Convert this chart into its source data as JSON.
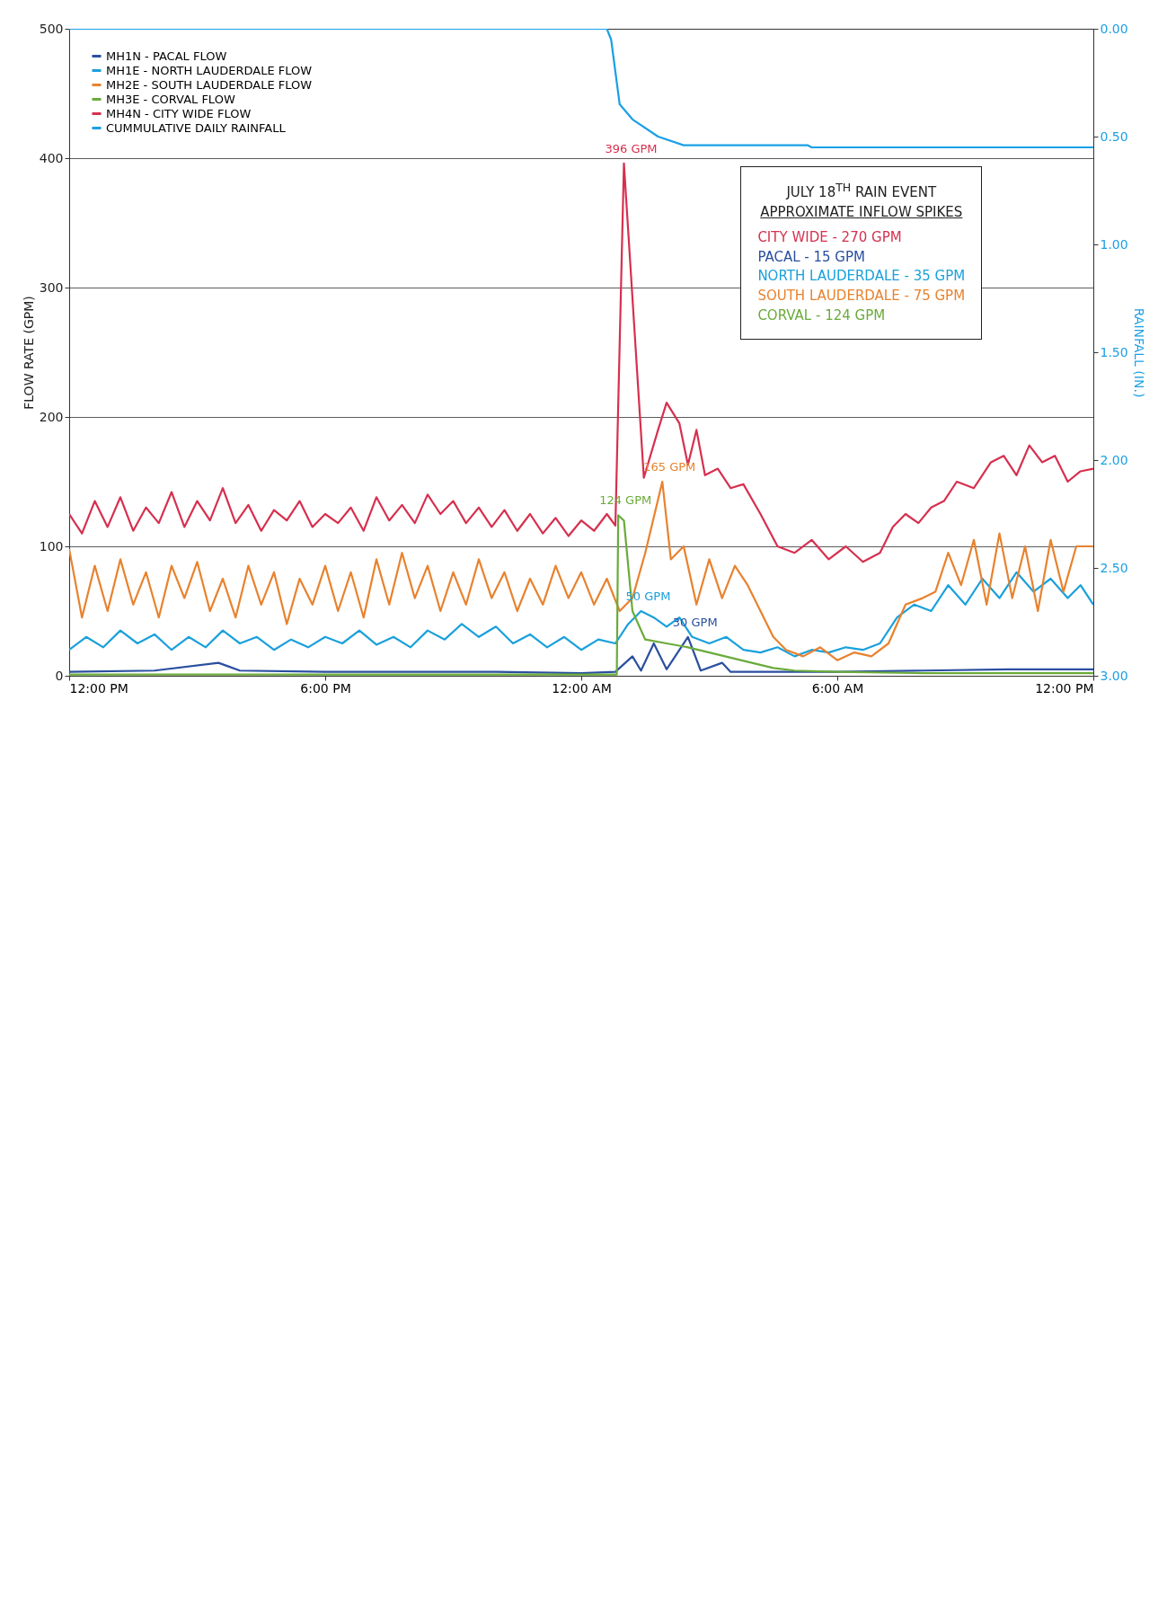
{
  "chart_data": {
    "type": "line",
    "xlabel": null,
    "ylabel": "FLOW RATE (GPM)",
    "y2label": "RAINFALL (IN.)",
    "xlim": [
      "--07-17T12:00",
      "--07-18T12:00"
    ],
    "xticks": [
      {
        "value": "--07-17T12:00",
        "label": "12:00 PM"
      },
      {
        "value": "--07-17T18:00",
        "label": "6:00 PM"
      },
      {
        "value": "--07-18T00:00",
        "label": "12:00 AM"
      },
      {
        "value": "--07-18T06:00",
        "label": "6:00 AM"
      },
      {
        "value": "--07-18T12:00",
        "label": "12:00 PM"
      }
    ],
    "ylim": [
      0,
      500
    ],
    "yticks": [
      0,
      100,
      200,
      300,
      400,
      500
    ],
    "y2lim": [
      3,
      0
    ],
    "y2ticks": [
      {
        "value": 0,
        "label": "0.00"
      },
      {
        "value": 0.5,
        "label": "0.50"
      },
      {
        "value": 1,
        "label": "1.00"
      },
      {
        "value": 1.5,
        "label": "1.50"
      },
      {
        "value": 2,
        "label": "2.00"
      },
      {
        "value": 2.5,
        "label": "2.50"
      },
      {
        "value": 3,
        "label": "3.00"
      }
    ],
    "grid": "y",
    "legend": "top left",
    "series": [
      {
        "name": "MH1N - PACAL FLOW",
        "color": "#2a4fa0",
        "x": [
          "--07-17T12:00",
          "--07-17T14:00",
          "--07-17T15:30",
          "--07-17T16:00",
          "--07-17T18:00",
          "--07-17T20:00",
          "--07-17T22:00",
          "--07-18T00:00",
          "--07-18T00:48",
          "--07-18T01:12",
          "--07-18T01:24",
          "--07-18T01:42",
          "--07-18T02:00",
          "--07-18T02:30",
          "--07-18T02:48",
          "--07-18T03:18",
          "--07-18T03:30",
          "--07-18T06:00",
          "--07-18T08:00",
          "--07-18T10:00",
          "--07-18T12:00"
        ],
        "values": [
          3,
          4,
          10,
          4,
          3,
          3,
          3,
          2,
          3,
          15,
          4,
          25,
          5,
          30,
          4,
          10,
          3,
          3,
          4,
          5,
          5
        ]
      },
      {
        "name": "MH1E - NORTH LAUDERDALE FLOW",
        "color": "#1aa0dc",
        "x": [
          "--07-17T12:00",
          "--07-17T12:24",
          "--07-17T12:48",
          "--07-17T13:12",
          "--07-17T13:36",
          "--07-17T14:00",
          "--07-17T14:24",
          "--07-17T14:48",
          "--07-17T15:12",
          "--07-17T15:36",
          "--07-17T16:00",
          "--07-17T16:24",
          "--07-17T16:48",
          "--07-17T17:12",
          "--07-17T17:36",
          "--07-17T18:00",
          "--07-17T18:24",
          "--07-17T18:48",
          "--07-17T19:12",
          "--07-17T19:36",
          "--07-17T20:00",
          "--07-17T20:24",
          "--07-17T20:48",
          "--07-17T21:12",
          "--07-17T21:36",
          "--07-17T22:00",
          "--07-17T22:24",
          "--07-17T22:48",
          "--07-17T23:12",
          "--07-17T23:36",
          "--07-18T00:00",
          "--07-18T00:24",
          "--07-18T00:48",
          "--07-18T01:06",
          "--07-18T01:24",
          "--07-18T01:42",
          "--07-18T02:00",
          "--07-18T02:18",
          "--07-18T02:36",
          "--07-18T03:00",
          "--07-18T03:24",
          "--07-18T03:48",
          "--07-18T04:12",
          "--07-18T04:36",
          "--07-18T05:00",
          "--07-18T05:24",
          "--07-18T05:48",
          "--07-18T06:12",
          "--07-18T06:36",
          "--07-18T07:00",
          "--07-18T07:24",
          "--07-18T07:48",
          "--07-18T08:12",
          "--07-18T08:36",
          "--07-18T09:00",
          "--07-18T09:24",
          "--07-18T09:48",
          "--07-18T10:12",
          "--07-18T10:36",
          "--07-18T11:00",
          "--07-18T11:24",
          "--07-18T11:42",
          "--07-18T12:00"
        ],
        "values": [
          20,
          30,
          22,
          35,
          25,
          32,
          20,
          30,
          22,
          35,
          25,
          30,
          20,
          28,
          22,
          30,
          25,
          35,
          24,
          30,
          22,
          35,
          28,
          40,
          30,
          38,
          25,
          32,
          22,
          30,
          20,
          28,
          25,
          40,
          50,
          45,
          38,
          45,
          30,
          25,
          30,
          20,
          18,
          22,
          15,
          20,
          18,
          22,
          20,
          25,
          45,
          55,
          50,
          70,
          55,
          75,
          60,
          80,
          65,
          75,
          60,
          70,
          55
        ]
      },
      {
        "name": "MH2E - SOUTH LAUDERDALE FLOW",
        "color": "#e8822e",
        "x": [
          "--07-17T12:00",
          "--07-17T12:18",
          "--07-17T12:36",
          "--07-17T12:54",
          "--07-17T13:12",
          "--07-17T13:30",
          "--07-17T13:48",
          "--07-17T14:06",
          "--07-17T14:24",
          "--07-17T14:42",
          "--07-17T15:00",
          "--07-17T15:18",
          "--07-17T15:36",
          "--07-17T15:54",
          "--07-17T16:12",
          "--07-17T16:30",
          "--07-17T16:48",
          "--07-17T17:06",
          "--07-17T17:24",
          "--07-17T17:42",
          "--07-17T18:00",
          "--07-17T18:18",
          "--07-17T18:36",
          "--07-17T18:54",
          "--07-17T19:12",
          "--07-17T19:30",
          "--07-17T19:48",
          "--07-17T20:06",
          "--07-17T20:24",
          "--07-17T20:42",
          "--07-17T21:00",
          "--07-17T21:18",
          "--07-17T21:36",
          "--07-17T21:54",
          "--07-17T22:12",
          "--07-17T22:30",
          "--07-17T22:48",
          "--07-17T23:06",
          "--07-17T23:24",
          "--07-17T23:42",
          "--07-18T00:00",
          "--07-18T00:18",
          "--07-18T00:36",
          "--07-18T00:54",
          "--07-18T01:12",
          "--07-18T01:30",
          "--07-18T01:54",
          "--07-18T02:06",
          "--07-18T02:24",
          "--07-18T02:42",
          "--07-18T03:00",
          "--07-18T03:18",
          "--07-18T03:36",
          "--07-18T03:54",
          "--07-18T04:12",
          "--07-18T04:30",
          "--07-18T04:48",
          "--07-18T05:12",
          "--07-18T05:36",
          "--07-18T06:00",
          "--07-18T06:24",
          "--07-18T06:48",
          "--07-18T07:12",
          "--07-18T07:36",
          "--07-18T08:00",
          "--07-18T08:18",
          "--07-18T08:36",
          "--07-18T08:54",
          "--07-18T09:12",
          "--07-18T09:30",
          "--07-18T09:48",
          "--07-18T10:06",
          "--07-18T10:24",
          "--07-18T10:42",
          "--07-18T11:00",
          "--07-18T11:18",
          "--07-18T11:36",
          "--07-18T12:00"
        ],
        "values": [
          98,
          45,
          85,
          50,
          90,
          55,
          80,
          45,
          85,
          60,
          88,
          50,
          75,
          45,
          85,
          55,
          80,
          40,
          75,
          55,
          85,
          50,
          80,
          45,
          90,
          55,
          95,
          60,
          85,
          50,
          80,
          55,
          90,
          60,
          80,
          50,
          75,
          55,
          85,
          60,
          80,
          55,
          75,
          50,
          60,
          95,
          150,
          90,
          100,
          55,
          90,
          60,
          85,
          70,
          50,
          30,
          20,
          15,
          22,
          12,
          18,
          15,
          25,
          55,
          60,
          65,
          95,
          70,
          105,
          55,
          110,
          60,
          100,
          50,
          105,
          65,
          100,
          100
        ]
      },
      {
        "name": "MH3E - CORVAL FLOW",
        "color": "#6aab3a",
        "x": [
          "--07-17T12:00",
          "--07-17T16:00",
          "--07-17T20:00",
          "--07-18T00:00",
          "--07-18T00:50",
          "--07-18T00:52",
          "--07-18T01:00",
          "--07-18T01:12",
          "--07-18T01:30",
          "--07-18T02:00",
          "--07-18T02:30",
          "--07-18T03:00",
          "--07-18T03:30",
          "--07-18T04:00",
          "--07-18T04:30",
          "--07-18T05:00",
          "--07-18T06:00",
          "--07-18T08:00",
          "--07-18T10:00",
          "--07-18T12:00"
        ],
        "values": [
          1,
          1,
          1,
          1,
          1,
          124,
          120,
          50,
          28,
          25,
          22,
          18,
          14,
          10,
          6,
          4,
          3,
          2,
          2,
          2
        ]
      },
      {
        "name": "MH4N - CITY WIDE FLOW",
        "color": "#d6304f",
        "x": [
          "--07-17T12:00",
          "--07-17T12:18",
          "--07-17T12:36",
          "--07-17T12:54",
          "--07-17T13:12",
          "--07-17T13:30",
          "--07-17T13:48",
          "--07-17T14:06",
          "--07-17T14:24",
          "--07-17T14:42",
          "--07-17T15:00",
          "--07-17T15:18",
          "--07-17T15:36",
          "--07-17T15:54",
          "--07-17T16:12",
          "--07-17T16:30",
          "--07-17T16:48",
          "--07-17T17:06",
          "--07-17T17:24",
          "--07-17T17:42",
          "--07-17T18:00",
          "--07-17T18:18",
          "--07-17T18:36",
          "--07-17T18:54",
          "--07-17T19:12",
          "--07-17T19:30",
          "--07-17T19:48",
          "--07-17T20:06",
          "--07-17T20:24",
          "--07-17T20:42",
          "--07-17T21:00",
          "--07-17T21:18",
          "--07-17T21:36",
          "--07-17T21:54",
          "--07-17T22:12",
          "--07-17T22:30",
          "--07-17T22:48",
          "--07-17T23:06",
          "--07-17T23:24",
          "--07-17T23:42",
          "--07-18T00:00",
          "--07-18T00:18",
          "--07-18T00:36",
          "--07-18T00:48",
          "--07-18T01:00",
          "--07-18T01:28",
          "--07-18T01:48",
          "--07-18T02:00",
          "--07-18T02:18",
          "--07-18T02:30",
          "--07-18T02:42",
          "--07-18T02:54",
          "--07-18T03:12",
          "--07-18T03:30",
          "--07-18T03:48",
          "--07-18T04:12",
          "--07-18T04:36",
          "--07-18T05:00",
          "--07-18T05:24",
          "--07-18T05:48",
          "--07-18T06:12",
          "--07-18T06:36",
          "--07-18T07:00",
          "--07-18T07:18",
          "--07-18T07:36",
          "--07-18T07:54",
          "--07-18T08:12",
          "--07-18T08:30",
          "--07-18T08:48",
          "--07-18T09:12",
          "--07-18T09:36",
          "--07-18T09:54",
          "--07-18T10:12",
          "--07-18T10:30",
          "--07-18T10:48",
          "--07-18T11:06",
          "--07-18T11:24",
          "--07-18T11:42",
          "--07-18T12:00"
        ],
        "values": [
          125,
          110,
          135,
          115,
          138,
          112,
          130,
          118,
          142,
          115,
          135,
          120,
          145,
          118,
          132,
          112,
          128,
          120,
          135,
          115,
          125,
          118,
          130,
          112,
          138,
          120,
          132,
          118,
          140,
          125,
          135,
          118,
          130,
          115,
          128,
          112,
          125,
          110,
          122,
          108,
          120,
          112,
          125,
          116,
          396,
          153,
          190,
          211,
          195,
          163,
          190,
          155,
          160,
          145,
          148,
          125,
          100,
          95,
          105,
          90,
          100,
          88,
          95,
          115,
          125,
          118,
          130,
          135,
          150,
          145,
          165,
          170,
          155,
          178,
          165,
          170,
          150,
          158,
          160
        ]
      },
      {
        "name": "CUMMULATIVE DAILY RAINFALL",
        "color": "#1aa0e6",
        "axis": "y2",
        "x": [
          "--07-17T12:00",
          "--07-18T00:36",
          "--07-18T00:42",
          "--07-18T00:54",
          "--07-18T01:12",
          "--07-18T01:48",
          "--07-18T02:24",
          "--07-18T05:18",
          "--07-18T05:24",
          "--07-18T12:00"
        ],
        "values": [
          0,
          0,
          0.05,
          0.35,
          0.42,
          0.5,
          0.54,
          0.54,
          0.55,
          0.55
        ]
      }
    ],
    "annotations": [
      "JULY 18$^{TH}$ RAIN EVENT",
      "APPROXIMATE INFLOW SPIKES",
      "CITY WIDE - 270 GPM",
      "PACAL - 15 GPM",
      "NORTH LAUDERDALE - 35 GPM",
      "SOUTH LAUDERDALE - 75 GPM",
      "CORVAL - 124 GPM",
      {
        "text": "396 GPM",
        "x": "--07-18T01:00",
        "y": 396
      },
      {
        "text": "165 GPM",
        "x": "--07-18T01:54",
        "y": 150
      },
      {
        "text": "124 GPM",
        "x": "--07-18T00:52",
        "y": 124
      },
      {
        "text": "50 GPM",
        "x": "--07-18T01:24",
        "y": 50
      },
      {
        "text": "30 GPM",
        "x": "--07-18T02:30",
        "y": 30
      }
    ]
  }
}
